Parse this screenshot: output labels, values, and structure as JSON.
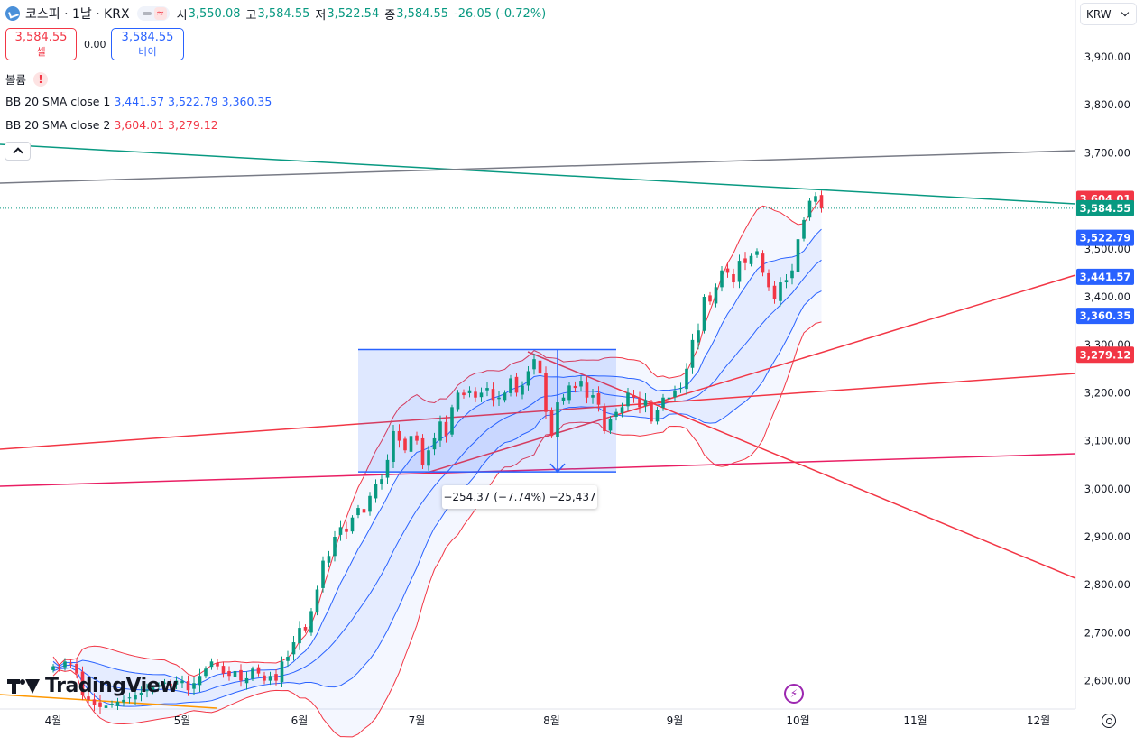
{
  "header": {
    "symbol": "코스피 · 1날 · KRX",
    "open_label": "시",
    "open": "3,550.08",
    "high_label": "고",
    "high": "3,584.55",
    "low_label": "저",
    "low": "3,522.54",
    "close_label": "종",
    "close": "3,584.55",
    "change": "-26.05 (-0.72%)",
    "wave_symbol": "≈"
  },
  "trade": {
    "sell_price": "3,584.55",
    "sell_label": "셀",
    "spread": "0.00",
    "buy_price": "3,584.55",
    "buy_label": "바이"
  },
  "indicators": {
    "volume_label": "볼륨",
    "volume_warning": "!",
    "bb1_label": "BB 20 SMA close 1",
    "bb1_values": [
      "3,441.57",
      "3,522.79",
      "3,360.35"
    ],
    "bb2_label": "BB 20 SMA close 2",
    "bb2_values": [
      "3,604.01",
      "3,279.12"
    ]
  },
  "currency": "KRW",
  "measure_label": "−254.37 (−7.74%) −25,437",
  "logo_text": "TradingView",
  "flash_icon": "⚡",
  "colors": {
    "up": "#089981",
    "down": "#f23645",
    "band_fill": "#2962ff",
    "price_line": "#089981",
    "bb_blue": "#2962ff",
    "bb_red": "#f23645"
  },
  "chart_data": {
    "type": "candlestick",
    "y_axis": {
      "ticks": [
        2600,
        2700,
        2800,
        2900,
        3000,
        3100,
        3200,
        3300,
        3400,
        3500,
        3600,
        3700,
        3800,
        3900
      ],
      "tick_labels": [
        "2,600.00",
        "2,700.00",
        "2,800.00",
        "2,900.00",
        "3,000.00",
        "3,100.00",
        "3,200.00",
        "3,300.00",
        "3,400.00",
        "3,500.00",
        "3,600.00",
        "3,700.00",
        "3,800.00",
        "3,900.00"
      ],
      "range": [
        2540,
        3950
      ]
    },
    "x_axis": {
      "labels": [
        "4월",
        "5월",
        "6월",
        "7월",
        "8월",
        "9월",
        "10월",
        "11월",
        "12월"
      ],
      "label_t": [
        0,
        22,
        42,
        62,
        85,
        106,
        127,
        147,
        168
      ]
    },
    "price_labels": [
      {
        "text": "3,604.01",
        "value": 3604.01,
        "color": "#f23645"
      },
      {
        "text": "3,584.55",
        "value": 3584.55,
        "color": "#089981"
      },
      {
        "text": "3,522.79",
        "value": 3522.79,
        "color": "#2962ff"
      },
      {
        "text": "3,441.57",
        "value": 3441.57,
        "color": "#2962ff"
      },
      {
        "text": "3,360.35",
        "value": 3360.35,
        "color": "#2962ff"
      },
      {
        "text": "3,279.12",
        "value": 3279.12,
        "color": "#f23645"
      }
    ],
    "closes": [
      2630,
      2625,
      2640,
      2635,
      2615,
      2570,
      2560,
      2550,
      2545,
      2548,
      2552,
      2556,
      2560,
      2565,
      2570,
      2575,
      2580,
      2586,
      2591,
      2596,
      2590,
      2600,
      2600,
      2580,
      2595,
      2610,
      2625,
      2640,
      2630,
      2615,
      2610,
      2620,
      2600,
      2605,
      2625,
      2615,
      2600,
      2610,
      2600,
      2640,
      2650,
      2680,
      2710,
      2705,
      2745,
      2790,
      2850,
      2860,
      2900,
      2920,
      2910,
      2940,
      2960,
      2950,
      2985,
      3010,
      3020,
      3060,
      3120,
      3100,
      3080,
      3110,
      3100,
      3050,
      3080,
      3105,
      3140,
      3110,
      3170,
      3200,
      3195,
      3205,
      3190,
      3200,
      3210,
      3185,
      3190,
      3200,
      3230,
      3200,
      3215,
      3245,
      3270,
      3240,
      3160,
      3110,
      3180,
      3190,
      3215,
      3210,
      3225,
      3190,
      3195,
      3175,
      3120,
      3145,
      3160,
      3170,
      3200,
      3190,
      3170,
      3185,
      3140,
      3165,
      3190,
      3190,
      3205,
      3210,
      3250,
      3310,
      3330,
      3400,
      3390,
      3420,
      3455,
      3450,
      3430,
      3475,
      3470,
      3485,
      3495,
      3450,
      3420,
      3395,
      3430,
      3435,
      3455,
      3520,
      3560,
      3600,
      3610,
      3584.55
    ],
    "dates_note": "",
    "bb_basis_start": 2640,
    "annotations": {
      "measure_box": {
        "t_start": 52,
        "t_end": 96,
        "y_top": 3290,
        "y_bottom": 3035
      },
      "measure_text": "−254.37 (−7.74%) −25,437"
    }
  }
}
